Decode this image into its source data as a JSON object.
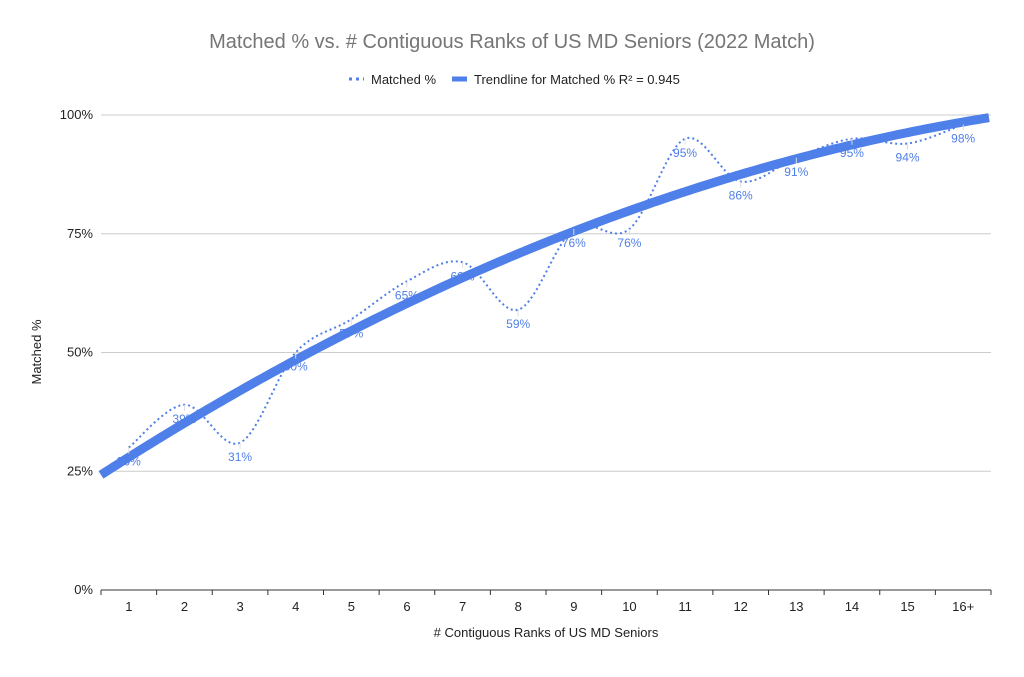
{
  "chart_data": {
    "type": "line",
    "title": "Matched % vs. # Contiguous Ranks of US MD Seniors (2022 Match)",
    "xlabel": "# Contiguous Ranks of US MD Seniors",
    "ylabel": "Matched %",
    "categories": [
      "1",
      "2",
      "3",
      "4",
      "5",
      "6",
      "7",
      "8",
      "9",
      "10",
      "11",
      "12",
      "13",
      "14",
      "15",
      "16+"
    ],
    "series": [
      {
        "name": "Matched %",
        "values": [
          30,
          39,
          31,
          50,
          57,
          65,
          69,
          59,
          76,
          76,
          95,
          86,
          91,
          95,
          94,
          98
        ],
        "data_labels": [
          "30%",
          "39%",
          "31%",
          "50%",
          "57%",
          "65%",
          "69%",
          "59%",
          "76%",
          "76%",
          "95%",
          "86%",
          "91%",
          "95%",
          "94%",
          "98%"
        ],
        "style": "dotted smooth line",
        "color": "#4f7fe8"
      }
    ],
    "trendline": {
      "name": "Trendline for Matched % R² = 0.945",
      "type": "polynomial",
      "r_squared": 0.945,
      "color": "#4f7fe8"
    },
    "ylim": [
      0,
      100
    ],
    "yticks": [
      "0%",
      "25%",
      "50%",
      "75%",
      "100%"
    ],
    "ytick_values": [
      0,
      25,
      50,
      75,
      100
    ],
    "grid": true,
    "legend": "top"
  }
}
